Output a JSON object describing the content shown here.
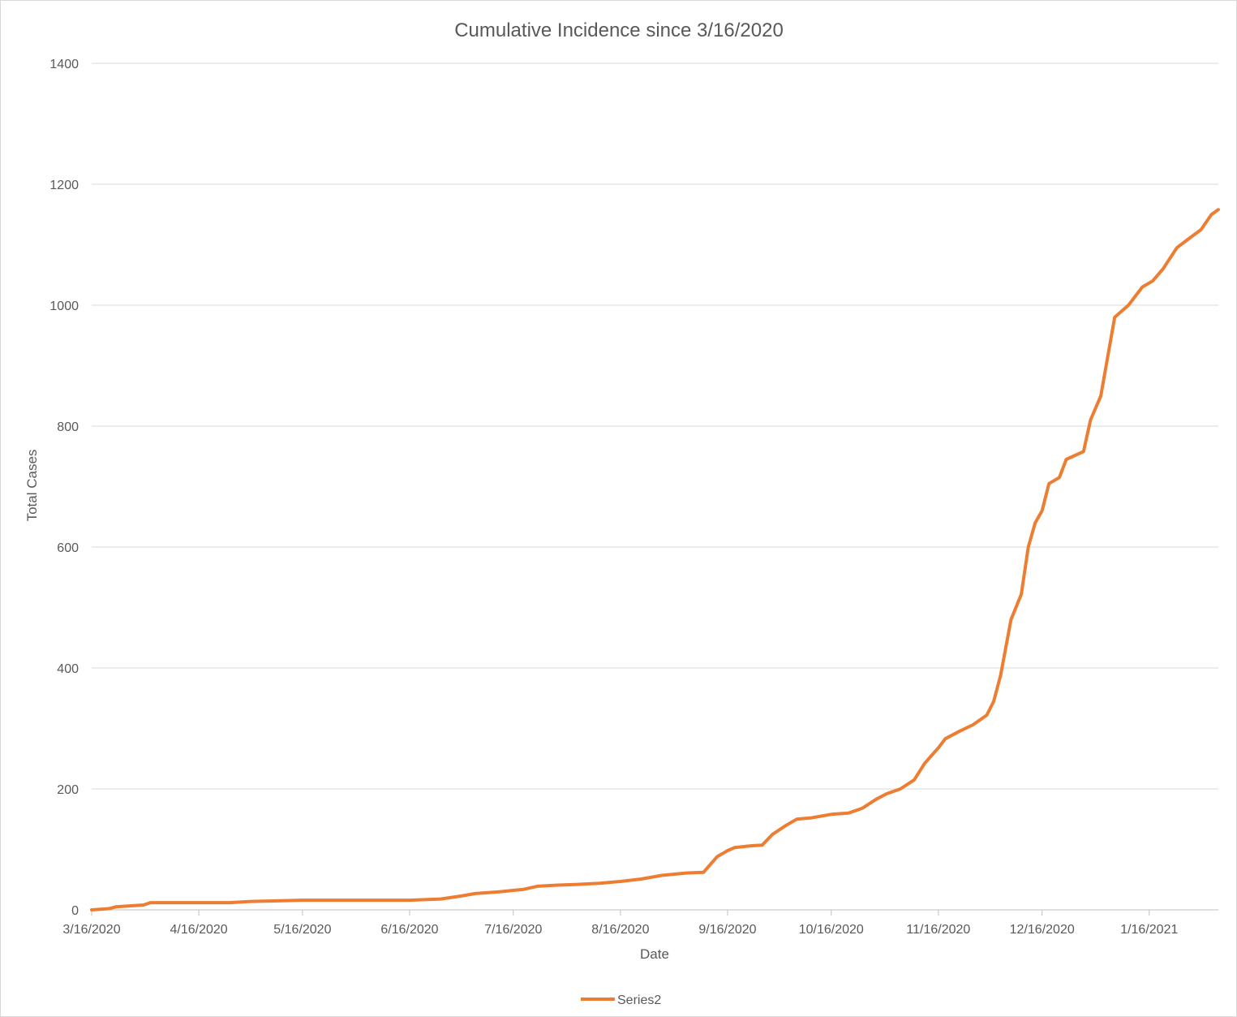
{
  "chart_data": {
    "type": "line",
    "title": "Cumulative Incidence since 3/16/2020",
    "xlabel": "Date",
    "ylabel": "Total Cases",
    "ylim": [
      0,
      1400
    ],
    "yticks": [
      0,
      200,
      400,
      600,
      800,
      1000,
      1200,
      1400
    ],
    "xticks": [
      "3/16/2020",
      "4/16/2020",
      "5/16/2020",
      "6/16/2020",
      "7/16/2020",
      "8/16/2020",
      "9/16/2020",
      "10/16/2020",
      "11/16/2020",
      "12/16/2020",
      "1/16/2021"
    ],
    "xlim": [
      "2020-03-16",
      "2021-02-05"
    ],
    "grid": true,
    "legend": "bottom",
    "series": [
      {
        "name": "Series2",
        "color": "#ed7d31",
        "points": [
          [
            "2020-03-16",
            0
          ],
          [
            "2020-03-21",
            2
          ],
          [
            "2020-03-23",
            5
          ],
          [
            "2020-03-31",
            8
          ],
          [
            "2020-04-02",
            12
          ],
          [
            "2020-04-25",
            12
          ],
          [
            "2020-05-01",
            14
          ],
          [
            "2020-05-10",
            15
          ],
          [
            "2020-05-16",
            16
          ],
          [
            "2020-06-01",
            16
          ],
          [
            "2020-06-16",
            16
          ],
          [
            "2020-06-25",
            18
          ],
          [
            "2020-07-01",
            23
          ],
          [
            "2020-07-05",
            27
          ],
          [
            "2020-07-12",
            30
          ],
          [
            "2020-07-19",
            34
          ],
          [
            "2020-07-23",
            39
          ],
          [
            "2020-07-29",
            41
          ],
          [
            "2020-08-03",
            42
          ],
          [
            "2020-08-10",
            44
          ],
          [
            "2020-08-16",
            47
          ],
          [
            "2020-08-22",
            51
          ],
          [
            "2020-08-28",
            57
          ],
          [
            "2020-09-04",
            61
          ],
          [
            "2020-09-09",
            62
          ],
          [
            "2020-09-11",
            75
          ],
          [
            "2020-09-13",
            88
          ],
          [
            "2020-09-16",
            98
          ],
          [
            "2020-09-18",
            103
          ],
          [
            "2020-09-23",
            106
          ],
          [
            "2020-09-26",
            107
          ],
          [
            "2020-09-29",
            125
          ],
          [
            "2020-10-03",
            140
          ],
          [
            "2020-10-06",
            150
          ],
          [
            "2020-10-10",
            152
          ],
          [
            "2020-10-16",
            158
          ],
          [
            "2020-10-21",
            160
          ],
          [
            "2020-10-25",
            168
          ],
          [
            "2020-10-29",
            183
          ],
          [
            "2020-11-01",
            192
          ],
          [
            "2020-11-05",
            200
          ],
          [
            "2020-11-09",
            215
          ],
          [
            "2020-11-12",
            242
          ],
          [
            "2020-11-16",
            268
          ],
          [
            "2020-11-18",
            283
          ],
          [
            "2020-11-22",
            295
          ],
          [
            "2020-11-26",
            306
          ],
          [
            "2020-11-30",
            322
          ],
          [
            "2020-12-02",
            345
          ],
          [
            "2020-12-04",
            388
          ],
          [
            "2020-12-07",
            480
          ],
          [
            "2020-12-10",
            522
          ],
          [
            "2020-12-12",
            600
          ],
          [
            "2020-12-14",
            640
          ],
          [
            "2020-12-16",
            660
          ],
          [
            "2020-12-18",
            705
          ],
          [
            "2020-12-21",
            715
          ],
          [
            "2020-12-23",
            745
          ],
          [
            "2020-12-28",
            758
          ],
          [
            "2020-12-30",
            810
          ],
          [
            "2021-01-02",
            850
          ],
          [
            "2021-01-06",
            980
          ],
          [
            "2021-01-10",
            1000
          ],
          [
            "2021-01-14",
            1030
          ],
          [
            "2021-01-17",
            1040
          ],
          [
            "2021-01-20",
            1060
          ],
          [
            "2021-01-24",
            1095
          ],
          [
            "2021-01-27",
            1108
          ],
          [
            "2021-01-31",
            1125
          ],
          [
            "2021-02-03",
            1150
          ],
          [
            "2021-02-05",
            1158
          ]
        ]
      }
    ]
  }
}
